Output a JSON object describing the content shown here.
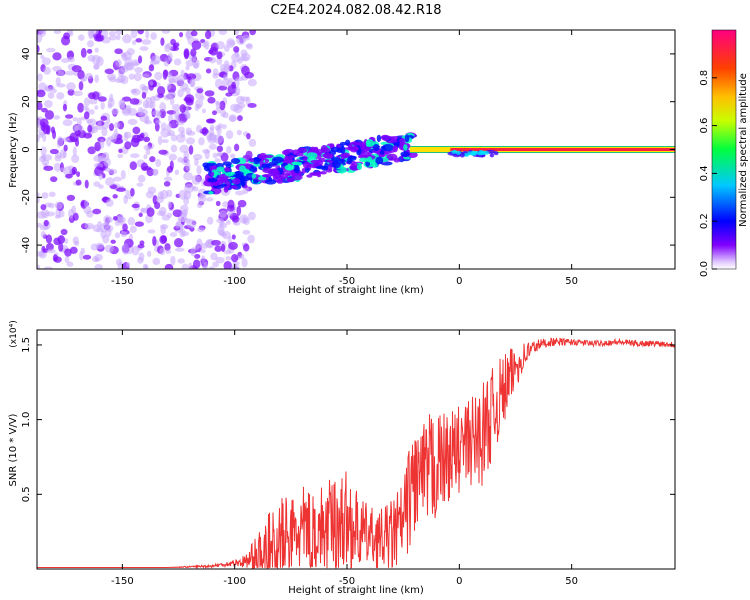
{
  "figure_title": "C2E4.2024.082.08.42.R18",
  "chart_data": [
    {
      "type": "heatmap",
      "xlabel": "Height of straight line (km)",
      "ylabel": "Frequency (Hz)",
      "xlim": [
        -188,
        96
      ],
      "ylim": [
        -50,
        50
      ],
      "x_ticks": [
        -150,
        -100,
        -50,
        0,
        50
      ],
      "x_tick_labels": [
        "-150",
        "-100",
        "-50",
        "0",
        "50"
      ],
      "y_ticks": [
        -40,
        -20,
        0,
        20,
        40
      ],
      "y_tick_labels": [
        "-40",
        "-20",
        "0",
        "20",
        "40"
      ],
      "colorbar": {
        "label": "Normalized spectral amplitude",
        "range": [
          0,
          1
        ],
        "ticks": [
          0.0,
          0.2,
          0.4,
          0.6,
          0.8
        ],
        "tick_labels": [
          "0.0",
          "0.2",
          "0.4",
          "0.6",
          "0.8"
        ],
        "colormap": [
          "#ffffff",
          "#8000ff",
          "#0000ff",
          "#00ffff",
          "#00ff00",
          "#ffff00",
          "#ff8000",
          "#ff0000",
          "#ff0080"
        ]
      },
      "regions": [
        {
          "name": "broadband noise",
          "x_range": [
            -188,
            -100
          ],
          "freq_range": [
            -50,
            50
          ],
          "amplitude": 0.15
        },
        {
          "name": "rising band",
          "x_range": [
            -113,
            -20
          ],
          "freq_start": [
            -15,
            -10
          ],
          "freq_end": [
            -2,
            5
          ],
          "amplitude": 0.3
        },
        {
          "name": "narrow carrier",
          "x_range": [
            -22,
            96
          ],
          "frequency": 0,
          "amplitude": 0.9
        }
      ]
    },
    {
      "type": "line",
      "xlabel": "Height of straight line (km)",
      "ylabel": "SNR (10 * V/V)",
      "y_multiplier": "(x10⁴)",
      "xlim": [
        -188,
        96
      ],
      "ylim": [
        0,
        1.6
      ],
      "x_ticks": [
        -150,
        -100,
        -50,
        0,
        50
      ],
      "x_tick_labels": [
        "-150",
        "-100",
        "-50",
        "0",
        "50"
      ],
      "y_ticks": [
        0.5,
        1.0,
        1.5
      ],
      "y_tick_labels": [
        "0.5",
        "1.0",
        "1.5"
      ],
      "series": [
        {
          "name": "SNR",
          "color": "#ee3333",
          "x": [
            -188,
            -160,
            -130,
            -110,
            -100,
            -95,
            -90,
            -85,
            -80,
            -75,
            -70,
            -65,
            -60,
            -55,
            -50,
            -45,
            -40,
            -35,
            -30,
            -25,
            -22,
            -20,
            -15,
            -12,
            -10,
            -5,
            0,
            5,
            10,
            15,
            20,
            25,
            30,
            35,
            40,
            50,
            60,
            70,
            80,
            90,
            96
          ],
          "y": [
            0.01,
            0.01,
            0.01,
            0.02,
            0.04,
            0.05,
            0.08,
            0.12,
            0.18,
            0.22,
            0.25,
            0.28,
            0.26,
            0.3,
            0.32,
            0.25,
            0.22,
            0.2,
            0.22,
            0.3,
            0.5,
            0.6,
            0.62,
            0.65,
            0.7,
            0.75,
            0.8,
            0.85,
            0.9,
            1.05,
            1.2,
            1.35,
            1.45,
            1.5,
            1.52,
            1.52,
            1.51,
            1.52,
            1.51,
            1.51,
            1.5
          ],
          "noise_amplitude": [
            0,
            0,
            0,
            0.01,
            0.02,
            0.05,
            0.15,
            0.25,
            0.3,
            0.28,
            0.3,
            0.3,
            0.3,
            0.35,
            0.35,
            0.25,
            0.2,
            0.2,
            0.25,
            0.3,
            0.35,
            0.4,
            0.35,
            0.45,
            0.35,
            0.3,
            0.3,
            0.3,
            0.35,
            0.3,
            0.25,
            0.15,
            0.08,
            0.04,
            0.03,
            0.02,
            0.02,
            0.02,
            0.02,
            0.02,
            0.02
          ]
        }
      ]
    }
  ]
}
